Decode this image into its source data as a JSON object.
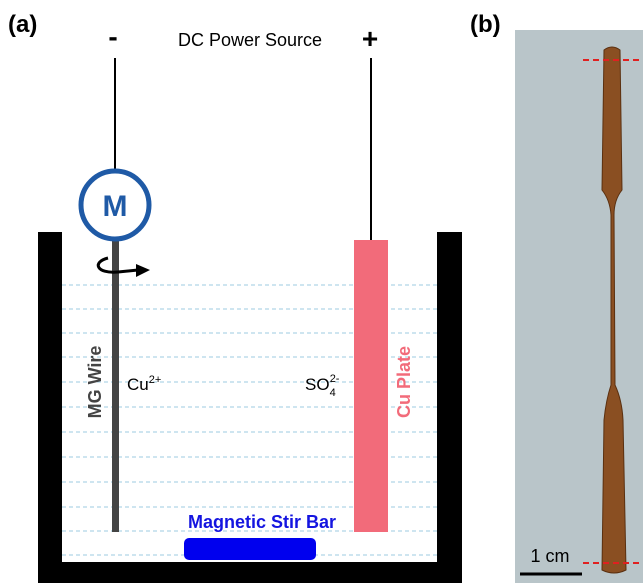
{
  "panel_a": {
    "label": "(a)",
    "minus": "-",
    "plus": "+",
    "source": "DC Power Source",
    "motor": "M",
    "wire": "MG Wire",
    "plate": "Cu Plate",
    "stir_bar": "Magnetic Stir Bar",
    "cation": {
      "base": "Cu",
      "sup": "2+"
    },
    "anion": {
      "base": "SO",
      "sub": "4",
      "sup": "2-"
    }
  },
  "panel_b": {
    "label": "(b)",
    "scale": "1 cm"
  }
}
